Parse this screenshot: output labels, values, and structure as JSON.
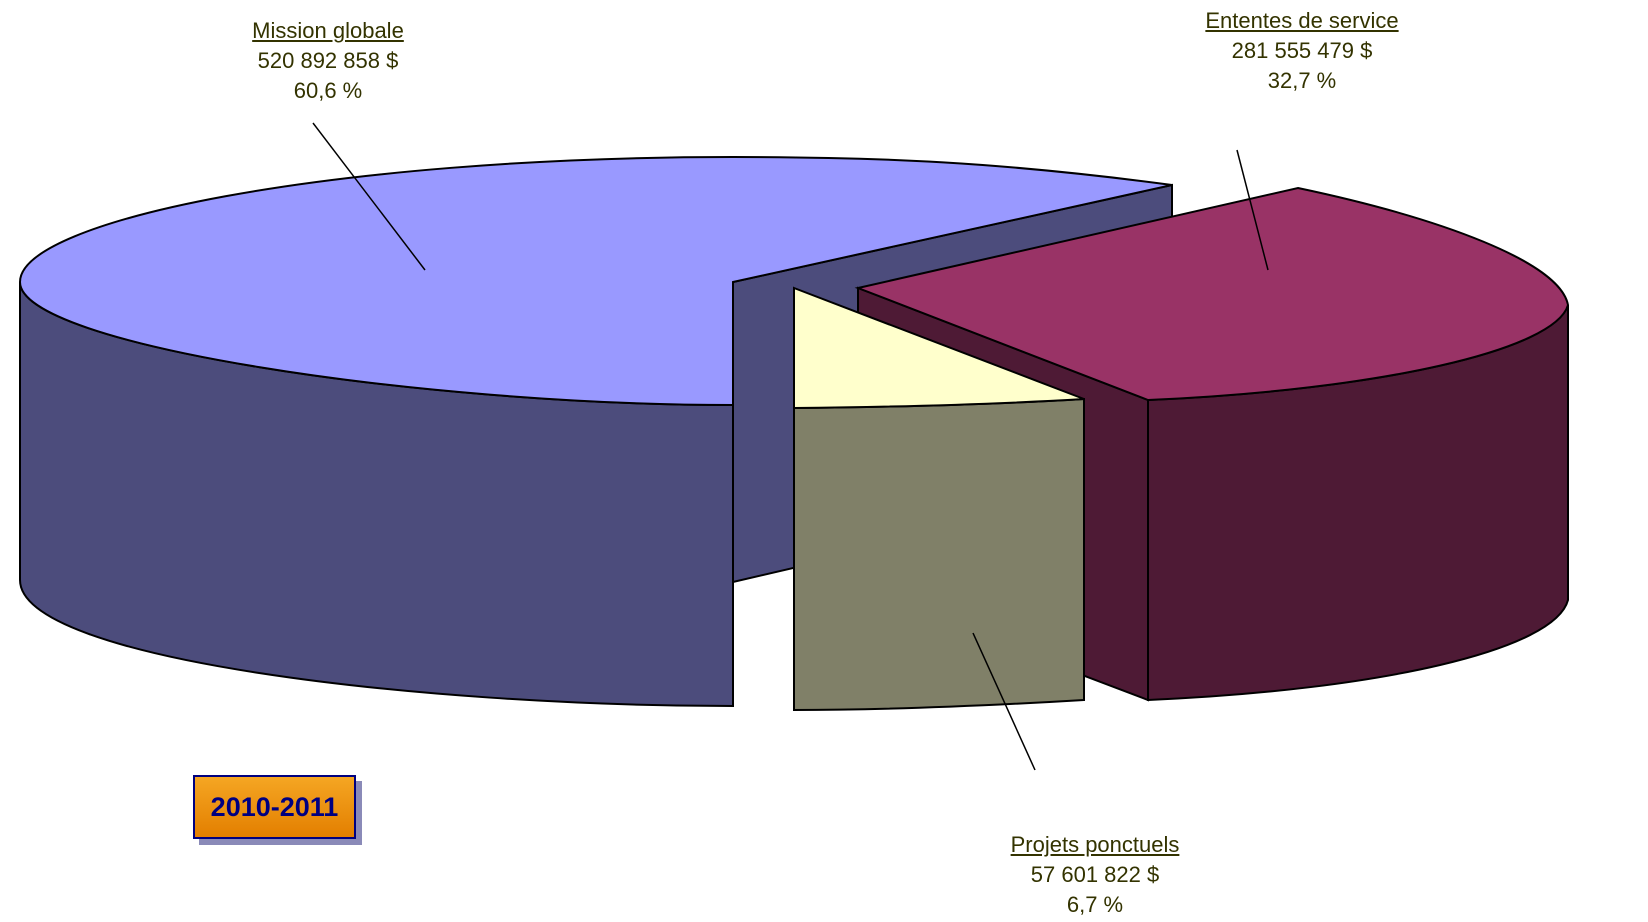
{
  "chart_data": {
    "type": "pie",
    "three_d": true,
    "slices": [
      {
        "name": "Mission globale",
        "value": 520892858,
        "value_label": "520 892 858 $",
        "percent_label": "60,6 %",
        "top_color": "#9999ff",
        "side_color": "#4c4c7c"
      },
      {
        "name": "Ententes de service",
        "value": 281555479,
        "value_label": "281 555 479 $",
        "percent_label": "32,7 %",
        "top_color": "#993366",
        "side_color": "#4e1a35"
      },
      {
        "name": "Projets ponctuels",
        "value": 57601822,
        "value_label": "57 601 822 $",
        "percent_label": "6,7 %",
        "top_color": "#ffffcc",
        "side_color": "#808068"
      }
    ],
    "annotation": "2010-2011",
    "legend": "none"
  },
  "colors": {
    "label_text": "#333300",
    "badge_fill": "#f59a1b",
    "badge_text": "#000080",
    "badge_shadow": "#8a8ab8",
    "outline": "#000000"
  }
}
